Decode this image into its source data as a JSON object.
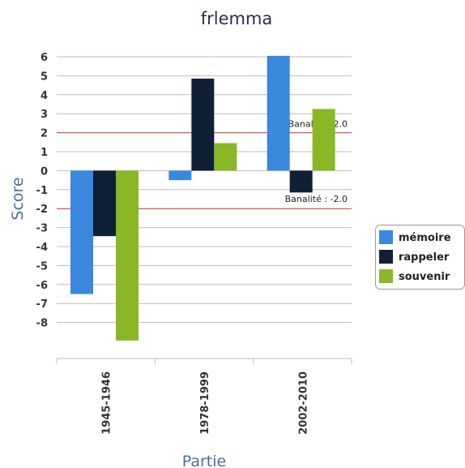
{
  "chart_data": {
    "type": "bar",
    "title": "frlemma",
    "xlabel": "Partie",
    "ylabel": "Score",
    "categories": [
      "1945-1946",
      "1978-1999",
      "2002-2010"
    ],
    "series": [
      {
        "name": "mémoire",
        "color": "#3a87de",
        "values": [
          -6.5,
          -0.5,
          6.05
        ]
      },
      {
        "name": "rappeler",
        "color": "#0f1f36",
        "values": [
          -3.45,
          4.85,
          -1.15
        ]
      },
      {
        "name": "souvenir",
        "color": "#8ab726",
        "values": [
          -8.95,
          1.45,
          3.25
        ]
      }
    ],
    "yticks": [
      6,
      5,
      4,
      3,
      2,
      1,
      0,
      -1,
      -2,
      -3,
      -4,
      -5,
      -6,
      -7,
      -8
    ],
    "ylim": [
      -9.8,
      6.0
    ],
    "grid": true,
    "legend_position": "right",
    "reference_lines": [
      {
        "value": 2.0,
        "label": "Banalité : 2.0",
        "color": "#e03a3a"
      },
      {
        "value": -2.0,
        "label": "Banalité : -2.0",
        "color": "#e03a3a"
      }
    ],
    "colors": {
      "grid": "#bbbbbb",
      "axis": "#bbbbbb",
      "title": "#2d2d4f",
      "axis_title": "#4a6fa5"
    }
  }
}
